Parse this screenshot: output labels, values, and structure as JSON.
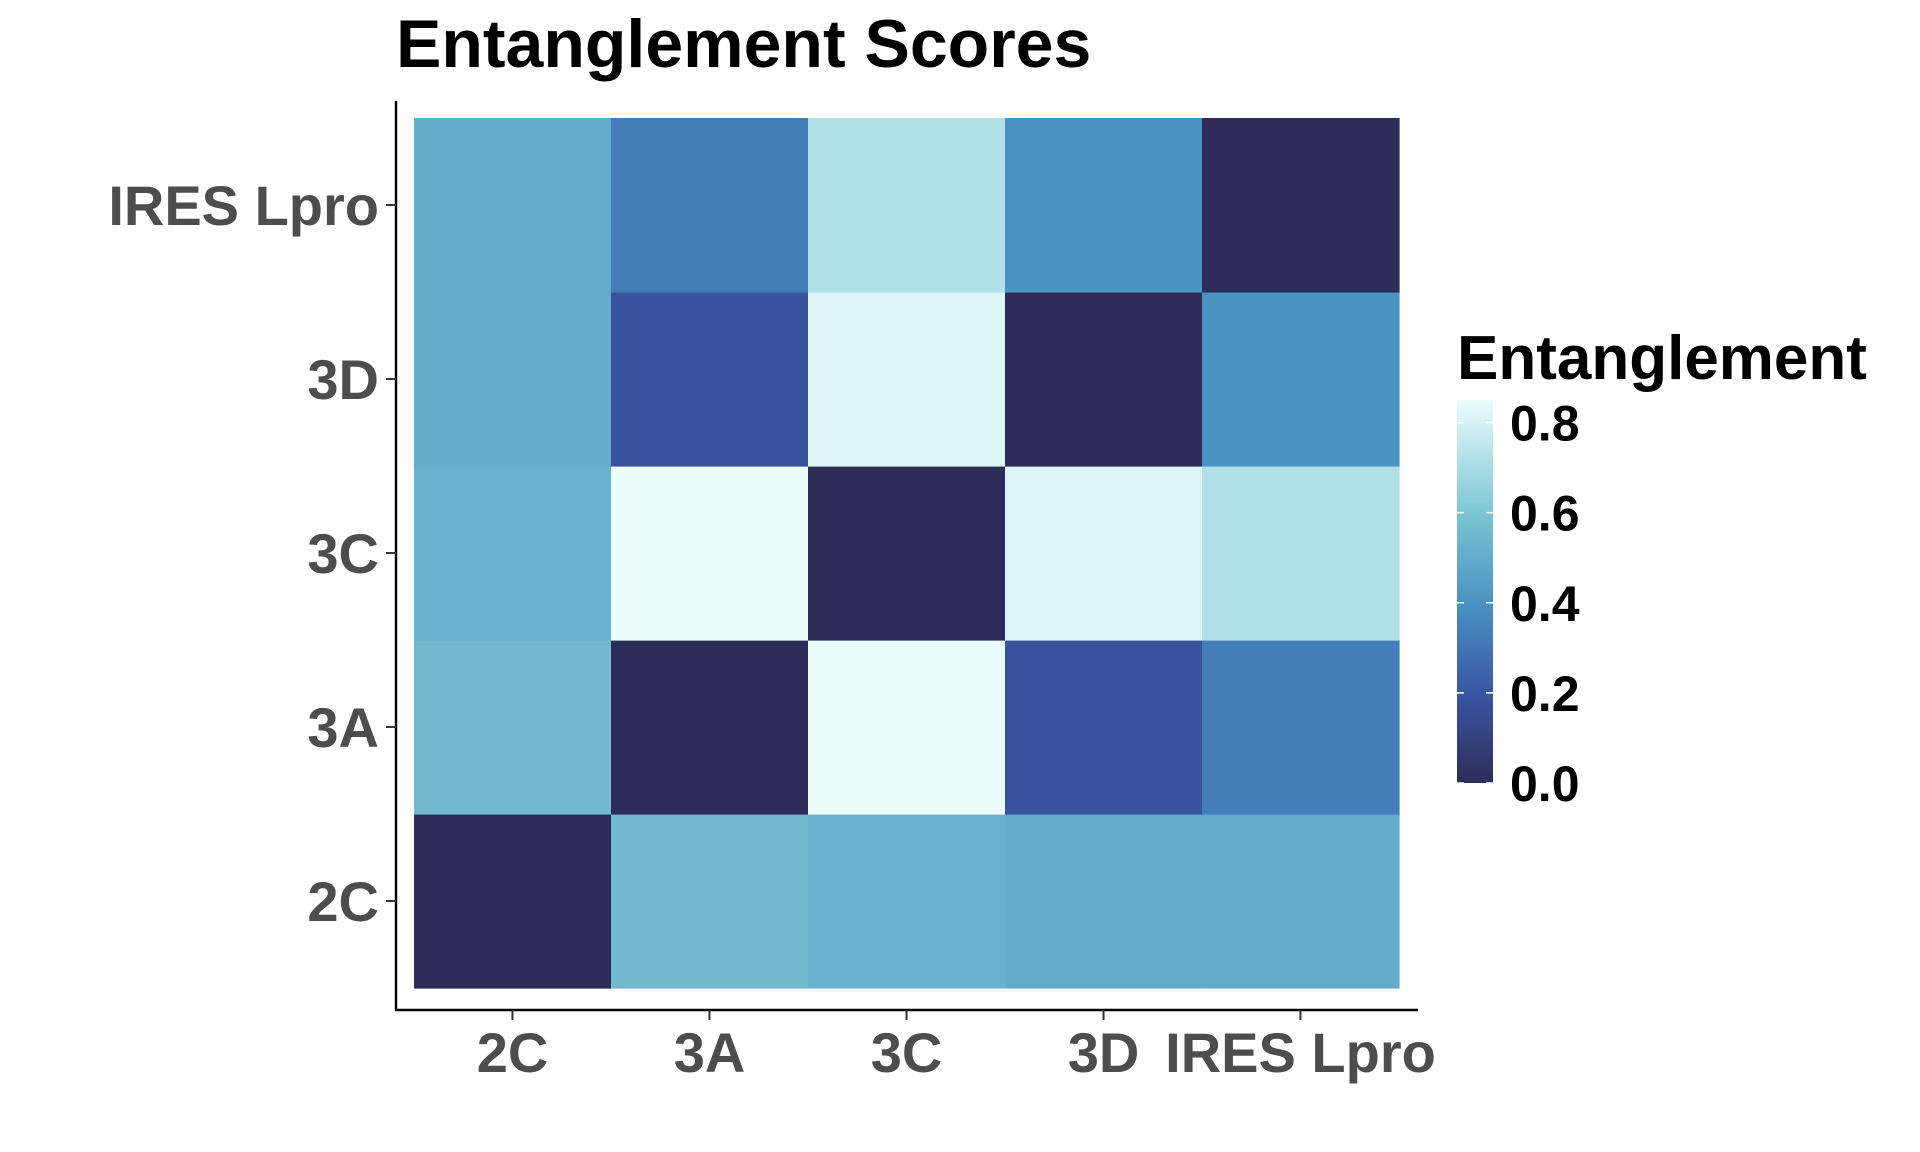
{
  "chart_data": {
    "type": "heatmap",
    "title": "Entanglement Scores",
    "x_categories": [
      "2C",
      "3A",
      "3C",
      "3D",
      "IRES Lpro"
    ],
    "y_categories": [
      "2C",
      "3A",
      "3C",
      "3D",
      "IRES Lpro"
    ],
    "values": [
      [
        0.0,
        0.55,
        0.52,
        0.5,
        0.5
      ],
      [
        0.55,
        0.0,
        0.85,
        0.18,
        0.33
      ],
      [
        0.52,
        0.85,
        0.0,
        0.82,
        0.72
      ],
      [
        0.5,
        0.18,
        0.82,
        0.0,
        0.4
      ],
      [
        0.5,
        0.33,
        0.72,
        0.4,
        0.0
      ]
    ],
    "legend": {
      "title": "Entanglement",
      "ticks": [
        "0.0",
        "0.2",
        "0.4",
        "0.6",
        "0.8"
      ],
      "tick_values": [
        0.0,
        0.2,
        0.4,
        0.6,
        0.8
      ],
      "range": [
        0.0,
        0.85
      ],
      "placement": "right"
    },
    "colorscale": [
      {
        "v": 0.0,
        "color": "#2e2d59"
      },
      {
        "v": 0.2,
        "color": "#3a56a4"
      },
      {
        "v": 0.4,
        "color": "#4a93c3"
      },
      {
        "v": 0.6,
        "color": "#7cc6d3"
      },
      {
        "v": 0.85,
        "color": "#ebfdfc"
      }
    ]
  }
}
